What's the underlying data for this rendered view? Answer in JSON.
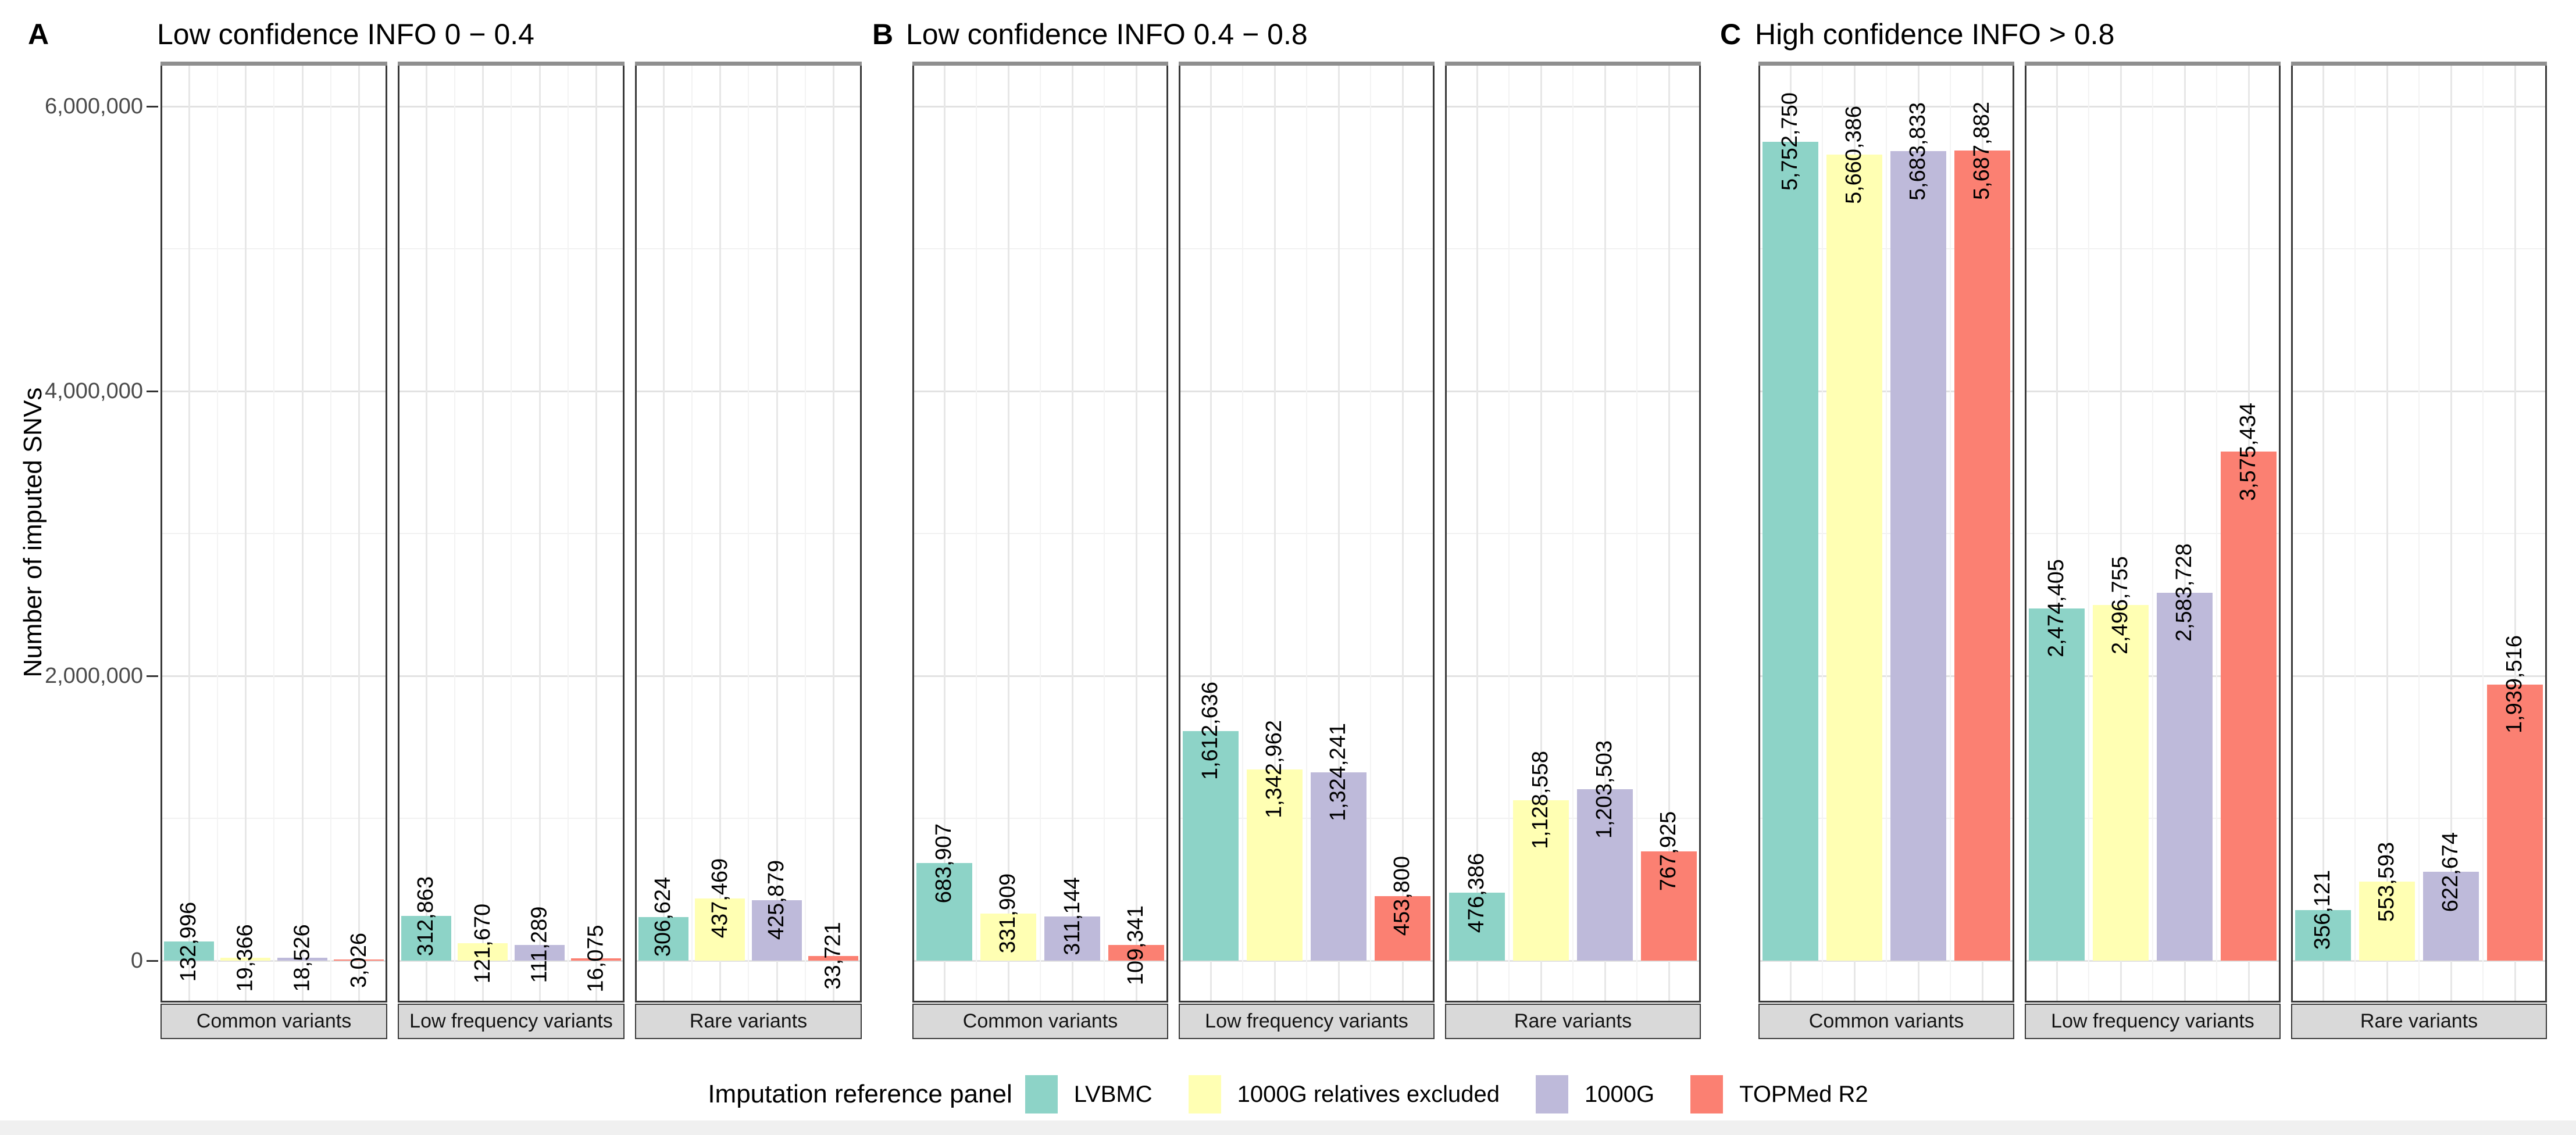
{
  "chart_data": {
    "type": "bar",
    "title": "",
    "ylabel": "Number of imputed SNVs",
    "xlabel": "",
    "ylim": [
      0,
      6300000
    ],
    "grid": true,
    "legend_position": "bottom",
    "legend_title": "Imputation reference panel",
    "y_axis": {
      "label": "Number of imputed SNVs",
      "ticks": [
        {
          "value": 0,
          "label": "0"
        },
        {
          "value": 2000000,
          "label": "2,000,000"
        },
        {
          "value": 4000000,
          "label": "4,000,000"
        },
        {
          "value": 6000000,
          "label": "6,000,000"
        }
      ],
      "minor_ticks": [
        1000000,
        3000000,
        5000000
      ]
    },
    "series": [
      {
        "name": "LVBMC",
        "color": "#8DD3C7"
      },
      {
        "name": "1000G relatives excluded",
        "color": "#FFFFB3"
      },
      {
        "name": "1000G",
        "color": "#BEBADA"
      },
      {
        "name": "TOPMed R2",
        "color": "#FB8072"
      }
    ],
    "facet_categories": [
      "Common variants",
      "Low frequency variants",
      "Rare variants"
    ],
    "panels": [
      {
        "letter": "A",
        "title": "Low confidence INFO 0 − 0.4",
        "facets": [
          {
            "category": "Common variants",
            "values": [
              132996,
              19366,
              18526,
              3026
            ]
          },
          {
            "category": "Low frequency variants",
            "values": [
              312863,
              121670,
              111289,
              16075
            ]
          },
          {
            "category": "Rare variants",
            "values": [
              306624,
              437469,
              425879,
              33721
            ]
          }
        ]
      },
      {
        "letter": "B",
        "title": "Low confidence INFO 0.4 − 0.8",
        "facets": [
          {
            "category": "Common variants",
            "values": [
              683907,
              331909,
              311144,
              109341
            ]
          },
          {
            "category": "Low frequency variants",
            "values": [
              1612636,
              1342962,
              1324241,
              453800
            ]
          },
          {
            "category": "Rare variants",
            "values": [
              476386,
              1128558,
              1203503,
              767925
            ]
          }
        ]
      },
      {
        "letter": "C",
        "title": "High confidence INFO > 0.8",
        "facets": [
          {
            "category": "Common variants",
            "values": [
              5752750,
              5660386,
              5683833,
              5687882
            ]
          },
          {
            "category": "Low frequency variants",
            "values": [
              2474405,
              2496755,
              2583728,
              3575434
            ]
          },
          {
            "category": "Rare variants",
            "values": [
              356121,
              553593,
              622674,
              1939516
            ]
          }
        ]
      }
    ],
    "colors": {
      "strip_background": "#D9D9D9",
      "panel_border": "#3A3A3A",
      "panel_top_bar": "#8F8F8F",
      "grid_major": "#E2E2E2",
      "grid_minor": "#F1F1F1",
      "axis_text": "#4A4A4A"
    }
  }
}
